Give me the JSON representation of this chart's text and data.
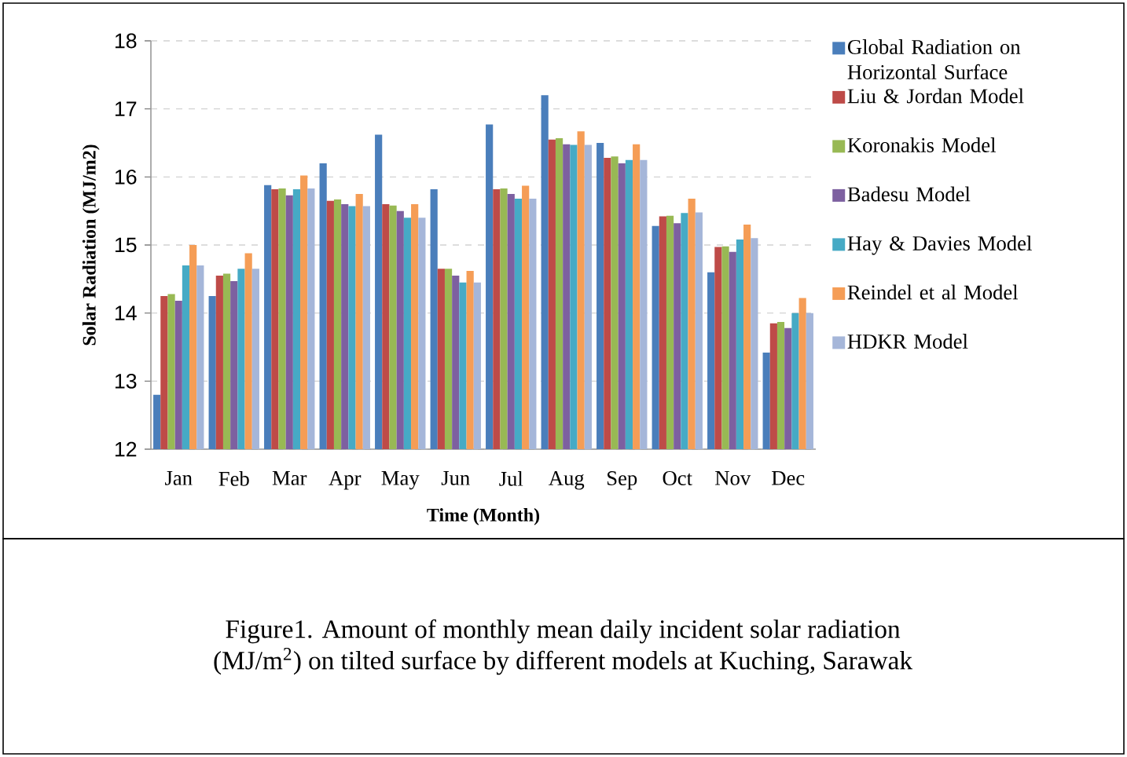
{
  "chart_data": {
    "type": "bar",
    "xlabel": "Time (Month)",
    "ylabel": "Solar Radiation (MJ/m2)",
    "categories": [
      "Jan",
      "Feb",
      "Mar",
      "Apr",
      "May",
      "Jun",
      "Jul",
      "Aug",
      "Sep",
      "Oct",
      "Nov",
      "Dec"
    ],
    "series": [
      {
        "name": "Global Radiation on Horizontal Surface",
        "color": "#4a7ebb",
        "values": [
          12.8,
          14.25,
          15.88,
          16.2,
          16.62,
          15.82,
          16.77,
          17.2,
          16.5,
          15.28,
          14.6,
          13.42
        ]
      },
      {
        "name": "Liu & Jordan Model",
        "color": "#be4b48",
        "values": [
          14.25,
          14.55,
          15.82,
          15.65,
          15.6,
          14.65,
          15.82,
          16.55,
          16.28,
          15.42,
          14.97,
          13.85
        ]
      },
      {
        "name": "Koronakis Model",
        "color": "#98b954",
        "values": [
          14.28,
          14.58,
          15.83,
          15.67,
          15.58,
          14.65,
          15.83,
          16.57,
          16.3,
          15.43,
          14.98,
          13.87
        ]
      },
      {
        "name": "Badesu Model",
        "color": "#7d60a0",
        "values": [
          14.18,
          14.47,
          15.73,
          15.6,
          15.5,
          14.55,
          15.75,
          16.48,
          16.2,
          15.32,
          14.9,
          13.78
        ]
      },
      {
        "name": "Hay & Davies Model",
        "color": "#46aac5",
        "values": [
          14.7,
          14.65,
          15.82,
          15.57,
          15.4,
          14.45,
          15.68,
          16.47,
          16.25,
          15.47,
          15.08,
          14.0
        ]
      },
      {
        "name": "Reindel et al Model",
        "color": "#f59d56",
        "values": [
          15.0,
          14.88,
          16.02,
          15.75,
          15.6,
          14.62,
          15.87,
          16.67,
          16.48,
          15.68,
          15.3,
          14.22
        ]
      },
      {
        "name": "HDKR Model",
        "color": "#a5b6d9",
        "values": [
          14.7,
          14.65,
          15.83,
          15.57,
          15.4,
          14.45,
          15.68,
          16.47,
          16.25,
          15.48,
          15.1,
          14.0
        ]
      }
    ],
    "ylim": [
      12,
      18
    ],
    "yticks": [
      12,
      13,
      14,
      15,
      16,
      17,
      18
    ],
    "grid": "y",
    "legend": "right",
    "annotations": [
      "Figure1. Amount of monthly mean daily incident solar radiation (MJ/m$^{2}$) on tilted surface by different models at Kuching, Sarawak"
    ]
  }
}
